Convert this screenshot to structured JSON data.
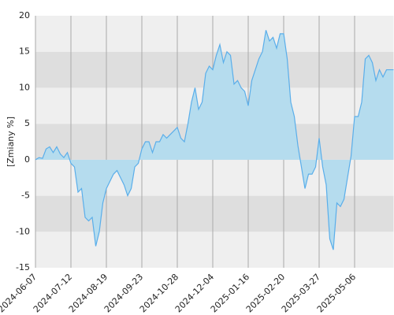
{
  "chart_data": {
    "type": "area",
    "y_label": "[Zmiany %]",
    "color": "#5aaeea",
    "fill": "#b5dcee",
    "ylim": [
      -15,
      20
    ],
    "yticks": [
      -15,
      -10,
      -5,
      0,
      5,
      10,
      15,
      20
    ],
    "grid": true,
    "categories": [
      "2024-06-07",
      null,
      null,
      null,
      null,
      null,
      null,
      null,
      null,
      null,
      "2024-07-12",
      null,
      null,
      null,
      null,
      null,
      null,
      null,
      null,
      null,
      "2024-08-19",
      null,
      null,
      null,
      null,
      null,
      null,
      null,
      null,
      null,
      "2024-09-23",
      null,
      null,
      null,
      null,
      null,
      null,
      null,
      null,
      null,
      "2024-10-28",
      null,
      null,
      null,
      null,
      null,
      null,
      null,
      null,
      null,
      "2024-12-04",
      null,
      null,
      null,
      null,
      null,
      null,
      null,
      null,
      null,
      "2025-01-16",
      null,
      null,
      null,
      null,
      null,
      null,
      null,
      null,
      null,
      "2025-02-20",
      null,
      null,
      null,
      null,
      null,
      null,
      null,
      null,
      null,
      "2025-03-27",
      null,
      null,
      null,
      null,
      null,
      null,
      null,
      null,
      null,
      "2025-05-06",
      null,
      null,
      null,
      null,
      null,
      null,
      null,
      null,
      null,
      null,
      null
    ],
    "values": [
      0,
      0.3,
      0.2,
      1.5,
      1.8,
      1,
      1.8,
      0.8,
      0.3,
      1,
      -0.5,
      -1,
      -4.5,
      -4,
      -8,
      -8.5,
      -8,
      -12,
      -10,
      -6,
      -4,
      -3,
      -2,
      -1.5,
      -2.5,
      -3.5,
      -5,
      -4,
      -1,
      -0.5,
      1.5,
      2.5,
      2.5,
      1,
      2.5,
      2.5,
      3.5,
      3,
      3.5,
      4,
      4.5,
      3,
      2.5,
      5,
      8,
      10,
      7,
      8,
      12,
      13,
      12.5,
      14.5,
      16,
      13.5,
      15,
      14.5,
      10.5,
      11,
      10,
      9.5,
      7.5,
      11,
      12.5,
      14,
      15,
      18,
      16.5,
      17,
      15.5,
      17.5,
      17.5,
      14,
      8,
      6,
      2,
      -1,
      -4,
      -2,
      -2,
      -1,
      3,
      -1,
      -3.5,
      -11,
      -12.5,
      -6,
      -6.5,
      -5.5,
      -2.5,
      0.5,
      6,
      6,
      8,
      14,
      14.5,
      13.5,
      11,
      12.5,
      11.5,
      12.5,
      12.5,
      12.5
    ]
  }
}
